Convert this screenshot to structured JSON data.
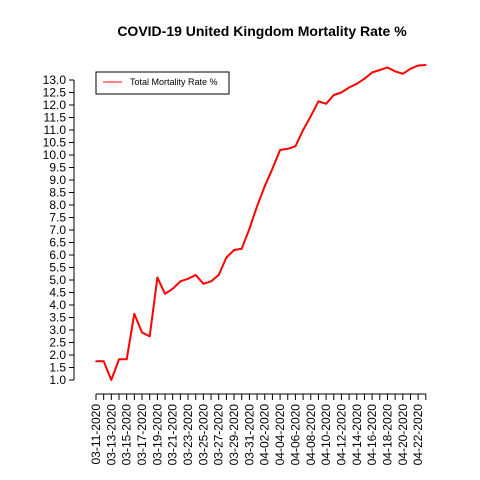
{
  "chart_data": {
    "type": "line",
    "title": "COVID-19 United Kingdom Mortality Rate %",
    "xlabel": "",
    "ylabel": "",
    "ylim": [
      1.0,
      13.0
    ],
    "yticks": [
      "1.0",
      "1.5",
      "2.0",
      "2.5",
      "3.0",
      "3.5",
      "4.0",
      "4.5",
      "5.0",
      "5.5",
      "6.0",
      "6.5",
      "7.0",
      "7.5",
      "8.0",
      "8.5",
      "9.0",
      "9.5",
      "10.0",
      "10.5",
      "11.0",
      "11.5",
      "12.0",
      "12.5",
      "13.0"
    ],
    "xtick_labels": [
      "03-11-2020",
      "03-13-2020",
      "03-15-2020",
      "03-17-2020",
      "03-19-2020",
      "03-21-2020",
      "03-23-2020",
      "03-25-2020",
      "03-27-2020",
      "03-29-2020",
      "03-31-2020",
      "04-02-2020",
      "04-04-2020",
      "04-06-2020",
      "04-08-2020",
      "04-10-2020",
      "04-12-2020",
      "04-14-2020",
      "04-16-2020",
      "04-18-2020",
      "04-20-2020",
      "04-22-2020"
    ],
    "legend_position": "top-left",
    "grid": false,
    "series": [
      {
        "name": "Total Mortality Rate %",
        "color": "#ff0000",
        "x": [
          "03-11-2020",
          "03-12-2020",
          "03-13-2020",
          "03-14-2020",
          "03-15-2020",
          "03-16-2020",
          "03-17-2020",
          "03-18-2020",
          "03-19-2020",
          "03-20-2020",
          "03-21-2020",
          "03-22-2020",
          "03-23-2020",
          "03-24-2020",
          "03-25-2020",
          "03-26-2020",
          "03-27-2020",
          "03-28-2020",
          "03-29-2020",
          "03-30-2020",
          "03-31-2020",
          "04-01-2020",
          "04-02-2020",
          "04-03-2020",
          "04-04-2020",
          "04-05-2020",
          "04-06-2020",
          "04-07-2020",
          "04-08-2020",
          "04-09-2020",
          "04-10-2020",
          "04-11-2020",
          "04-12-2020",
          "04-13-2020",
          "04-14-2020",
          "04-15-2020",
          "04-16-2020",
          "04-17-2020",
          "04-18-2020",
          "04-19-2020",
          "04-20-2020",
          "04-21-2020",
          "04-22-2020",
          "04-23-2020"
        ],
        "values": [
          1.75,
          1.75,
          1.0,
          1.83,
          1.83,
          3.65,
          2.9,
          2.75,
          5.1,
          4.45,
          4.65,
          4.95,
          5.05,
          5.2,
          4.85,
          4.95,
          5.2,
          5.9,
          6.2,
          6.25,
          7.05,
          7.95,
          8.75,
          9.45,
          10.2,
          10.25,
          10.35,
          11.0,
          11.55,
          12.15,
          12.05,
          12.4,
          12.5,
          12.7,
          12.85,
          13.05,
          13.3,
          13.4,
          13.5,
          13.35,
          13.25,
          13.45,
          13.58,
          13.6
        ]
      }
    ]
  }
}
